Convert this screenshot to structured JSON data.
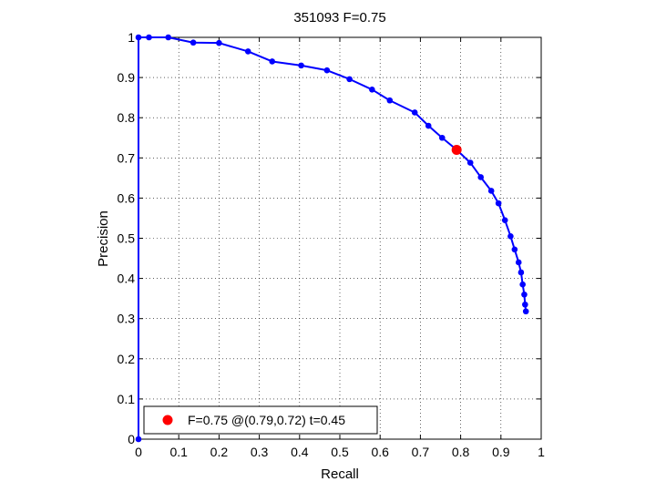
{
  "chart_data": {
    "type": "line",
    "title": "351093 F=0.75",
    "xlabel": "Recall",
    "ylabel": "Precision",
    "xlim": [
      0,
      1
    ],
    "ylim": [
      0,
      1
    ],
    "x_ticks": [
      "0",
      "0.1",
      "0.2",
      "0.3",
      "0.4",
      "0.5",
      "0.6",
      "0.7",
      "0.8",
      "0.9",
      "1"
    ],
    "y_ticks": [
      "0",
      "0.1",
      "0.2",
      "0.3",
      "0.4",
      "0.5",
      "0.6",
      "0.7",
      "0.8",
      "0.9",
      "1"
    ],
    "grid": true,
    "legend_position": "bottom-left",
    "series": [
      {
        "color": "#0000ff",
        "points": [
          [
            0.0,
            0.0
          ],
          [
            0.0,
            1.0
          ],
          [
            0.026,
            1.0
          ],
          [
            0.074,
            1.0
          ],
          [
            0.136,
            0.987
          ],
          [
            0.2,
            0.986
          ],
          [
            0.272,
            0.965
          ],
          [
            0.332,
            0.94
          ],
          [
            0.404,
            0.93
          ],
          [
            0.468,
            0.918
          ],
          [
            0.524,
            0.896
          ],
          [
            0.58,
            0.87
          ],
          [
            0.624,
            0.843
          ],
          [
            0.686,
            0.813
          ],
          [
            0.72,
            0.78
          ],
          [
            0.754,
            0.75
          ],
          [
            0.788,
            0.722
          ],
          [
            0.824,
            0.688
          ],
          [
            0.85,
            0.652
          ],
          [
            0.876,
            0.618
          ],
          [
            0.894,
            0.587
          ],
          [
            0.91,
            0.545
          ],
          [
            0.924,
            0.505
          ],
          [
            0.934,
            0.472
          ],
          [
            0.944,
            0.44
          ],
          [
            0.95,
            0.415
          ],
          [
            0.954,
            0.385
          ],
          [
            0.958,
            0.36
          ],
          [
            0.96,
            0.335
          ],
          [
            0.962,
            0.318
          ]
        ]
      }
    ],
    "highlight": {
      "x": 0.79,
      "y": 0.72,
      "color": "#ff0000"
    },
    "legend": [
      {
        "label": "F=0.75 @(0.79,0.72) t=0.45",
        "color": "#ff0000"
      }
    ]
  }
}
